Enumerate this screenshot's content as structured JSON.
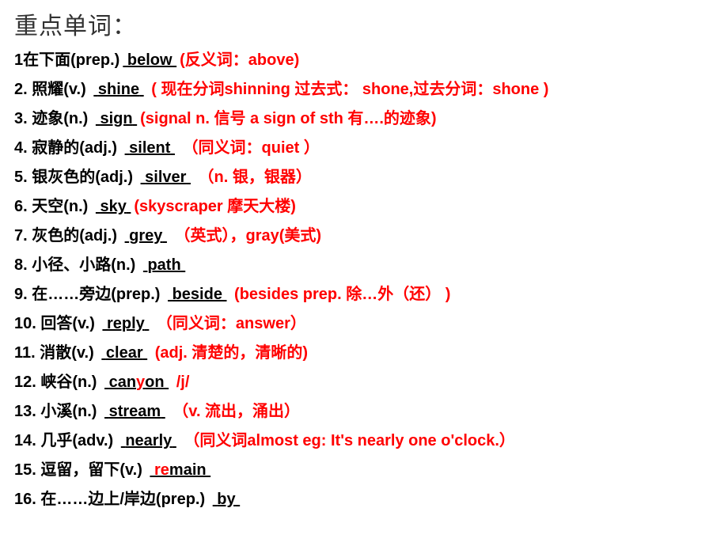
{
  "title": "重点单词：",
  "items": [
    {
      "num": "1",
      "cn": "在下面(prep.)",
      "ans": "below",
      "note": "(反义词：above)"
    },
    {
      "num": "2.",
      "cn": " 照耀(v.)   ",
      "ans": "shine",
      "note": " ( 现在分词shinning  过去式： shone,过去分词：shone )"
    },
    {
      "num": "3.",
      "cn": " 迹象(n.)   ",
      "ans": "sign",
      "note": "(signal  n. 信号    a sign of  sth 有….的迹象)"
    },
    {
      "num": "4.",
      "cn": " 寂静的(adj.)  ",
      "ans": "silent",
      "note": " （同义词：quiet ）"
    },
    {
      "num": "5.",
      "cn": " 银灰色的(adj.)   ",
      "ans": "silver",
      "note": "  （n. 银，银器）"
    },
    {
      "num": "6.",
      "cn": " 天空(n.)    ",
      "ans": "sky",
      "note": "(skyscraper 摩天大楼)"
    },
    {
      "num": "7.",
      "cn": " 灰色的(adj.)  ",
      "ans": "grey",
      "note": " （英式），gray(美式)"
    },
    {
      "num": "8.",
      "cn": " 小径、小路(n.)  ",
      "ans": "path",
      "note": ""
    },
    {
      "num": "9.",
      "cn": " 在……旁边(prep.)  ",
      "ans": "beside",
      "note": "  (besides prep. 除…外（还）  )"
    },
    {
      "num": "10.",
      "cn": " 回答(v.)  ",
      "ans": "reply",
      "note": " （同义词：answer）"
    },
    {
      "num": "11.",
      "cn": " 消散(v.)   ",
      "ans": "clear",
      "note": " (adj. 清楚的，清晰的)"
    },
    {
      "num": "12.",
      "cn": " 峡谷(n.)   ",
      "ans": "canyon",
      "note": "   /j/",
      "ry_index": 3
    },
    {
      "num": "13.",
      "cn": " 小溪(n.)   ",
      "ans": "stream",
      "note": " （v. 流出，涌出）"
    },
    {
      "num": "14.",
      "cn": " 几乎(adv.) ",
      "ans": "nearly",
      "note": " （同义词almost   eg: It's nearly one o'clock.）"
    },
    {
      "num": "15.",
      "cn": " 逗留，留下(v.)  ",
      "ans": "remain",
      "note": "",
      "ry_index": 0,
      "ry_len": 2
    },
    {
      "num": "16.",
      "cn": " 在……边上/岸边(prep.)  ",
      "ans": "by",
      "note": ""
    }
  ],
  "colors": {
    "text": "#000000",
    "highlight": "#ff0000",
    "background": "#ffffff"
  },
  "font": {
    "title_size": 30,
    "row_size": 20,
    "weight": "bold"
  }
}
